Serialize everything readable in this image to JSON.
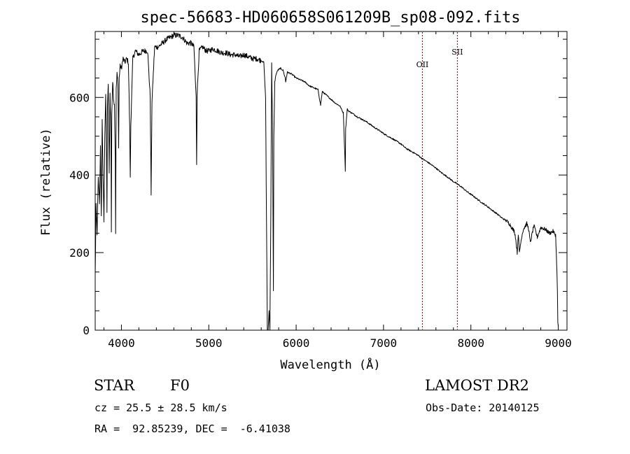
{
  "chart_data": {
    "type": "line",
    "title": "spec-56683-HD060658S061209B_sp08-092.fits",
    "xlabel": "Wavelength (Å)",
    "ylabel": "Flux (relative)",
    "xlim": [
      3700,
      9100
    ],
    "ylim": [
      0,
      770
    ],
    "x_ticks": [
      4000,
      5000,
      6000,
      7000,
      8000,
      9000
    ],
    "y_ticks": [
      0,
      200,
      400,
      600
    ],
    "grid": false,
    "line_color": "#000000",
    "marker_color": "#8b0000",
    "lines": [
      {
        "label": "OII",
        "x": 7445
      },
      {
        "label": "SII",
        "x": 7845
      }
    ],
    "series": [
      {
        "x": [
          3700,
          3710,
          3722,
          3735,
          3750,
          3760,
          3770,
          3780,
          3790,
          3800,
          3810,
          3820,
          3830,
          3835,
          3840,
          3850,
          3860,
          3870,
          3880,
          3885,
          3890,
          3900,
          3910,
          3920,
          3930,
          3934,
          3940,
          3950,
          3960,
          3968,
          3975,
          3985,
          4000,
          4020,
          4040,
          4060,
          4080,
          4095,
          4101,
          4108,
          4130,
          4160,
          4200,
          4250,
          4300,
          4330,
          4340,
          4350,
          4380,
          4420,
          4470,
          4520,
          4560,
          4600,
          4650,
          4700,
          4750,
          4800,
          4830,
          4855,
          4861,
          4867,
          4890,
          4930,
          4970,
          5000,
          5050,
          5100,
          5150,
          5200,
          5250,
          5300,
          5350,
          5400,
          5450,
          5500,
          5550,
          5600,
          5630,
          5650,
          5665,
          5670,
          5680,
          5690,
          5700,
          5710,
          5720,
          5730,
          5740,
          5745,
          5755,
          5770,
          5790,
          5820,
          5850,
          5875,
          5880,
          5895,
          5900,
          5950,
          6000,
          6050,
          6100,
          6150,
          6200,
          6250,
          6280,
          6290,
          6300,
          6350,
          6400,
          6450,
          6500,
          6540,
          6560,
          6563,
          6567,
          6585,
          6600,
          6650,
          6700,
          6750,
          6800,
          6850,
          6900,
          6950,
          7000,
          7050,
          7100,
          7150,
          7200,
          7250,
          7300,
          7350,
          7400,
          7450,
          7500,
          7550,
          7600,
          7650,
          7700,
          7750,
          7800,
          7850,
          7900,
          7950,
          8000,
          8050,
          8100,
          8150,
          8200,
          8250,
          8300,
          8350,
          8400,
          8440,
          8480,
          8498,
          8510,
          8530,
          8542,
          8555,
          8580,
          8600,
          8640,
          8662,
          8680,
          8720,
          8760,
          8800,
          8850,
          8900,
          8940,
          8970,
          8985,
          8990,
          8995,
          9000
        ],
        "y": [
          140,
          320,
          250,
          390,
          330,
          480,
          290,
          540,
          400,
          280,
          500,
          610,
          450,
          300,
          580,
          630,
          400,
          610,
          520,
          250,
          560,
          640,
          600,
          580,
          450,
          250,
          620,
          660,
          640,
          470,
          650,
          680,
          675,
          700,
          690,
          700,
          690,
          520,
          390,
          530,
          700,
          720,
          710,
          720,
          720,
          600,
          350,
          590,
          730,
          730,
          740,
          750,
          755,
          760,
          760,
          755,
          740,
          740,
          730,
          600,
          430,
          610,
          720,
          730,
          720,
          720,
          725,
          720,
          715,
          715,
          710,
          710,
          705,
          710,
          705,
          700,
          700,
          695,
          690,
          600,
          150,
          0,
          0,
          50,
          0,
          300,
          690,
          500,
          100,
          500,
          640,
          660,
          670,
          675,
          670,
          650,
          640,
          660,
          665,
          660,
          650,
          645,
          640,
          630,
          625,
          620,
          580,
          600,
          615,
          605,
          595,
          585,
          578,
          560,
          430,
          410,
          520,
          570,
          565,
          558,
          550,
          544,
          538,
          530,
          522,
          515,
          507,
          500,
          494,
          487,
          480,
          470,
          463,
          457,
          450,
          441,
          434,
          426,
          418,
          408,
          400,
          392,
          383,
          376,
          368,
          358,
          350,
          342,
          333,
          325,
          317,
          308,
          300,
          290,
          283,
          275,
          260,
          255,
          240,
          200,
          250,
          200,
          240,
          260,
          275,
          260,
          225,
          270,
          240,
          265,
          260,
          250,
          255,
          245,
          150,
          100,
          20,
          10
        ]
      }
    ]
  },
  "info": {
    "object_type": "STAR",
    "subclass": "F0",
    "survey": "LAMOST DR2",
    "cz": "cz = 25.5 ± 28.5 km/s",
    "obs_date": "Obs-Date: 20140125",
    "radec": "RA =  92.85239, DEC =  -6.41038"
  }
}
